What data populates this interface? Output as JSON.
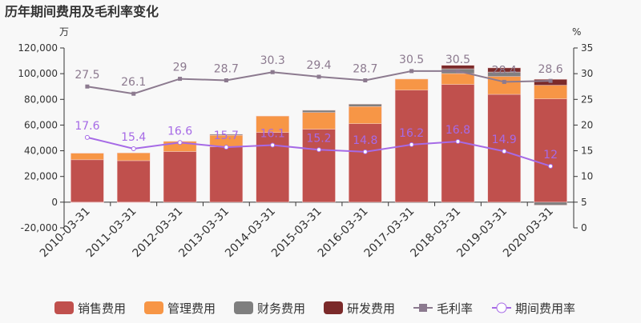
{
  "chart_data": {
    "type": "bar",
    "title": "历年期间费用及毛利率变化",
    "left_unit": "万",
    "right_unit": "%",
    "categories": [
      "2010-03-31",
      "2011-03-31",
      "2012-03-31",
      "2013-03-31",
      "2014-03-31",
      "2015-03-31",
      "2016-03-31",
      "2017-03-31",
      "2018-03-31",
      "2019-03-31",
      "2020-03-31"
    ],
    "left_axis": {
      "range": [
        -20000,
        120000
      ],
      "ticks": [
        "-20,000",
        "0",
        "20,000",
        "40,000",
        "60,000",
        "80,000",
        "100,000",
        "120,000"
      ]
    },
    "right_axis": {
      "range": [
        0,
        35
      ],
      "ticks": [
        "0",
        "5",
        "10",
        "15",
        "20",
        "25",
        "30",
        "35"
      ]
    },
    "stacked_series": [
      {
        "name": "销售费用",
        "color": "#c0504d",
        "values": [
          33000,
          32300,
          39400,
          43100,
          54300,
          56800,
          61100,
          87200,
          91600,
          83900,
          80400
        ]
      },
      {
        "name": "管理费用",
        "color": "#f79646",
        "values": [
          5100,
          6000,
          7900,
          8900,
          12700,
          13000,
          13300,
          8600,
          8500,
          13900,
          10600
        ]
      },
      {
        "name": "财务费用",
        "color": "#7f7f7f",
        "values": [
          -300,
          -300,
          0,
          800,
          0,
          1700,
          1900,
          0,
          3700,
          3500,
          -2300
        ]
      },
      {
        "name": "研发费用",
        "color": "#7b2a2a",
        "values": [
          0,
          0,
          0,
          0,
          0,
          0,
          0,
          0,
          2700,
          3200,
          4600
        ]
      }
    ],
    "line_series": [
      {
        "name": "毛利率",
        "color": "#8c7a8f",
        "values": [
          27.5,
          26.1,
          29,
          28.7,
          30.3,
          29.4,
          28.7,
          30.5,
          30.5,
          28.4,
          28.6
        ],
        "labels": [
          "27.5",
          "26.1",
          "29",
          "28.7",
          "30.3",
          "29.4",
          "28.7",
          "30.5",
          "30.5",
          "28.4",
          "28.6"
        ]
      },
      {
        "name": "期间费用率",
        "color": "#a66ae6",
        "values": [
          17.6,
          15.4,
          16.6,
          15.7,
          16.1,
          15.2,
          14.8,
          16.2,
          16.8,
          14.9,
          12
        ],
        "labels": [
          "17.6",
          "15.4",
          "16.6",
          "15.7",
          "16.1",
          "15.2",
          "14.8",
          "16.2",
          "16.8",
          "14.9",
          "12"
        ]
      }
    ],
    "legend_placement": "bottom",
    "grid": false
  }
}
